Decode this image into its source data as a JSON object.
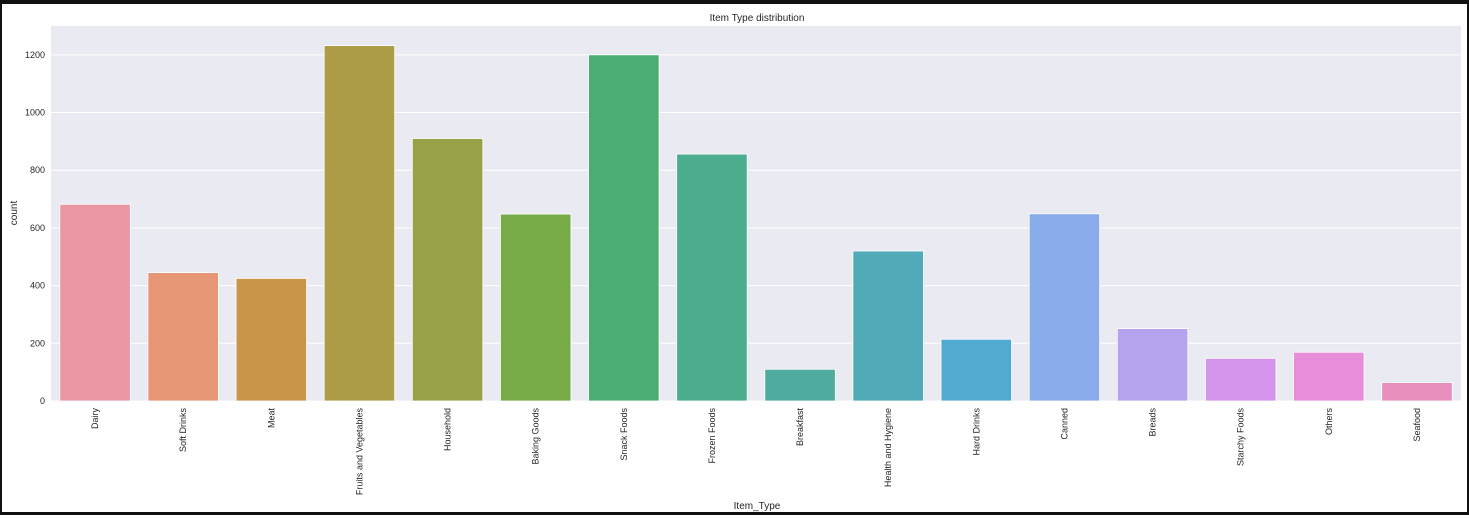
{
  "chart_data": {
    "type": "bar",
    "title": "Item Type distribution",
    "xlabel": "Item_Type",
    "ylabel": "count",
    "categories": [
      "Dairy",
      "Soft Drinks",
      "Meat",
      "Fruits and Vegetables",
      "Household",
      "Baking Goods",
      "Snack Foods",
      "Frozen Foods",
      "Breakfast",
      "Health and Hygiene",
      "Hard Drinks",
      "Canned",
      "Breads",
      "Starchy Foods",
      "Others",
      "Seafood"
    ],
    "values": [
      682,
      445,
      425,
      1232,
      910,
      648,
      1200,
      856,
      110,
      520,
      214,
      649,
      251,
      148,
      169,
      64
    ],
    "colors": [
      "#ea96a3",
      "#e69575",
      "#c99649",
      "#ad9d47",
      "#98a147",
      "#77ab48",
      "#4bad71",
      "#4cae8f",
      "#4eab9e",
      "#50aab8",
      "#53aad0",
      "#8aacea",
      "#b5a3ee",
      "#d594eb",
      "#e78dd9",
      "#e88fbd"
    ],
    "ylim": [
      0,
      1300
    ],
    "yticks": [
      0,
      200,
      400,
      600,
      800,
      1000,
      1200
    ],
    "grid": true,
    "legend": "none",
    "style": {
      "plot_background": "#eaeaf2",
      "grid_color": "#ffffff",
      "text_color": "#262626"
    }
  }
}
